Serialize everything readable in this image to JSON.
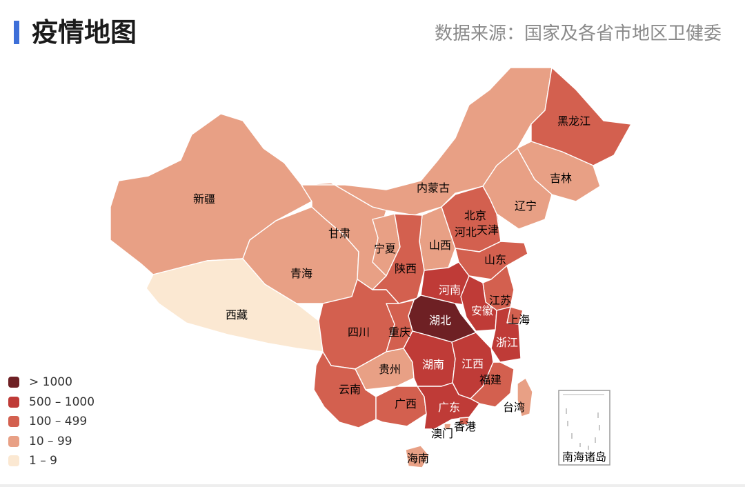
{
  "header": {
    "title": "疫情地图",
    "source": "数据来源：国家及各省市地区卫健委",
    "accent_color": "#3d6fd8"
  },
  "legend": [
    {
      "label": "> 1000",
      "color": "#6e2024"
    },
    {
      "label": "500 – 1000",
      "color": "#bf3b37"
    },
    {
      "label": "100 – 499",
      "color": "#d3604f"
    },
    {
      "label": "10 – 99",
      "color": "#e8a085"
    },
    {
      "label": "1 – 9",
      "color": "#fbe8d2"
    }
  ],
  "provinces": [
    {
      "id": "xinjiang",
      "name": "新疆",
      "color": "#e8a085"
    },
    {
      "id": "xizang",
      "name": "西藏",
      "color": "#fbe8d2"
    },
    {
      "id": "qinghai",
      "name": "青海",
      "color": "#e8a085"
    },
    {
      "id": "gansu",
      "name": "甘肃",
      "color": "#e8a085"
    },
    {
      "id": "neimenggu",
      "name": "内蒙古",
      "color": "#e8a085"
    },
    {
      "id": "heilongjiang",
      "name": "黑龙江",
      "color": "#d3604f"
    },
    {
      "id": "jilin",
      "name": "吉林",
      "color": "#e8a085"
    },
    {
      "id": "liaoning",
      "name": "辽宁",
      "color": "#e8a085"
    },
    {
      "id": "beijing",
      "name": "北京",
      "color": "#d3604f"
    },
    {
      "id": "tianjin",
      "name": "天津",
      "color": "#d3604f"
    },
    {
      "id": "hebei",
      "name": "河北",
      "color": "#d3604f"
    },
    {
      "id": "shanxi",
      "name": "山西",
      "color": "#e8a085"
    },
    {
      "id": "ningxia",
      "name": "宁夏",
      "color": "#e8a085"
    },
    {
      "id": "shaanxi",
      "name": "陕西",
      "color": "#d3604f"
    },
    {
      "id": "shandong",
      "name": "山东",
      "color": "#d3604f"
    },
    {
      "id": "henan",
      "name": "河南",
      "color": "#bf3b37"
    },
    {
      "id": "jiangsu",
      "name": "江苏",
      "color": "#d3604f"
    },
    {
      "id": "anhui",
      "name": "安徽",
      "color": "#bf3b37"
    },
    {
      "id": "shanghai",
      "name": "上海",
      "color": "#d3604f"
    },
    {
      "id": "hubei",
      "name": "湖北",
      "color": "#6e2024"
    },
    {
      "id": "zhejiang",
      "name": "浙江",
      "color": "#bf3b37"
    },
    {
      "id": "sichuan",
      "name": "四川",
      "color": "#d3604f"
    },
    {
      "id": "chongqing",
      "name": "重庆",
      "color": "#d3604f"
    },
    {
      "id": "guizhou",
      "name": "贵州",
      "color": "#e8a085"
    },
    {
      "id": "hunan",
      "name": "湖南",
      "color": "#bf3b37"
    },
    {
      "id": "jiangxi",
      "name": "江西",
      "color": "#bf3b37"
    },
    {
      "id": "fujian",
      "name": "福建",
      "color": "#d3604f"
    },
    {
      "id": "yunnan",
      "name": "云南",
      "color": "#d3604f"
    },
    {
      "id": "guangxi",
      "name": "广西",
      "color": "#d3604f"
    },
    {
      "id": "guangdong",
      "name": "广东",
      "color": "#bf3b37"
    },
    {
      "id": "taiwan",
      "name": "台湾",
      "color": "#e8a085"
    },
    {
      "id": "xianggang",
      "name": "香港",
      "color": "#d3604f"
    },
    {
      "id": "aomen",
      "name": "澳门",
      "color": "#e8a085"
    },
    {
      "id": "hainan",
      "name": "海南",
      "color": "#e8a085"
    }
  ],
  "inset": {
    "label": "南海诸岛"
  }
}
